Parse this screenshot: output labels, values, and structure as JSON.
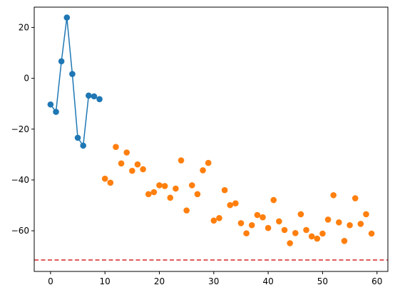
{
  "chart_data": {
    "type": "scatter",
    "title": "",
    "xlabel": "",
    "ylabel": "",
    "xlim": [
      -3,
      62
    ],
    "ylim": [
      -76,
      28
    ],
    "x_ticks": [
      0,
      10,
      20,
      30,
      40,
      50,
      60
    ],
    "y_ticks": [
      20,
      0,
      -20,
      -40,
      -60
    ],
    "x_tick_labels": [
      "0",
      "10",
      "20",
      "30",
      "40",
      "50",
      "60"
    ],
    "y_tick_labels": [
      "20",
      "0",
      "−20",
      "−40",
      "−60"
    ],
    "grid": false,
    "legend": "none",
    "series": [
      {
        "mode": "line+markers",
        "color": "#1f77b4",
        "x": [
          0,
          1,
          2,
          3,
          4,
          5,
          6,
          7,
          8,
          9
        ],
        "y": [
          -10.3,
          -13.2,
          6.7,
          23.9,
          1.7,
          -23.4,
          -26.5,
          -6.8,
          -7.1,
          -8.2
        ]
      },
      {
        "mode": "markers",
        "color": "#ff7f0e",
        "x": [
          10,
          11,
          12,
          13,
          14,
          15,
          16,
          17,
          18,
          19,
          20,
          21,
          22,
          23,
          24,
          25,
          26,
          27,
          28,
          29,
          30,
          31,
          32,
          33,
          34,
          35,
          36,
          37,
          38,
          39,
          40,
          41,
          42,
          43,
          44,
          45,
          46,
          47,
          48,
          49,
          50,
          51,
          52,
          53,
          54,
          55,
          56,
          57,
          58,
          59
        ],
        "y": [
          -39.5,
          -41.1,
          -27.0,
          -33.5,
          -29.2,
          -36.4,
          -33.9,
          -35.8,
          -45.6,
          -44.8,
          -42.1,
          -42.4,
          -47.0,
          -43.4,
          -32.3,
          -52.0,
          -42.1,
          -45.6,
          -36.2,
          -33.3,
          -56.0,
          -55.0,
          -44.0,
          -49.9,
          -49.2,
          -57.0,
          -61.0,
          -57.8,
          -53.8,
          -54.7,
          -58.9,
          -47.9,
          -56.3,
          -59.7,
          -64.9,
          -60.9,
          -53.5,
          -59.7,
          -62.2,
          -63.1,
          -61.1,
          -55.6,
          -46.0,
          -56.7,
          -64.0,
          -57.8,
          -47.2,
          -57.3,
          -53.5,
          -61.1
        ]
      }
    ],
    "reference_line": {
      "orientation": "horizontal",
      "y": -71.5,
      "style": "dashed",
      "color": "#d62728"
    }
  }
}
